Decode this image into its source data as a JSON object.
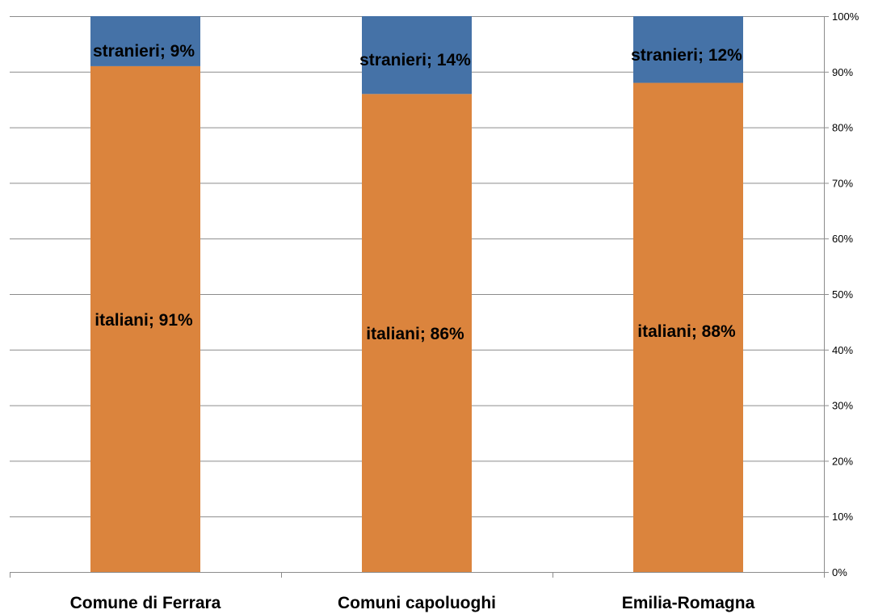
{
  "chart_data": {
    "type": "bar",
    "stacked": true,
    "percent_stacked": true,
    "categories": [
      "Comune di Ferrara",
      "Comuni capoluoghi",
      "Emilia-Romagna"
    ],
    "series": [
      {
        "name": "italiani",
        "color": "#DB843D",
        "values": [
          91,
          86,
          88
        ],
        "labels": [
          "italiani; 91%",
          "italiani; 86%",
          "italiani; 88%"
        ]
      },
      {
        "name": "stranieri",
        "color": "#4572A7",
        "values": [
          9,
          14,
          12
        ],
        "labels": [
          "stranieri; 9%",
          "stranieri; 14%",
          "stranieri; 12%"
        ]
      }
    ],
    "ylim": [
      0,
      100
    ],
    "yaxis_position": "right",
    "yticks": [
      0,
      10,
      20,
      30,
      40,
      50,
      60,
      70,
      80,
      90,
      100
    ],
    "ytick_labels": [
      "0%",
      "10%",
      "20%",
      "30%",
      "40%",
      "50%",
      "60%",
      "70%",
      "80%",
      "90%",
      "100%"
    ],
    "grid": true,
    "legend": "none",
    "title": "",
    "xlabel": "",
    "ylabel": ""
  }
}
